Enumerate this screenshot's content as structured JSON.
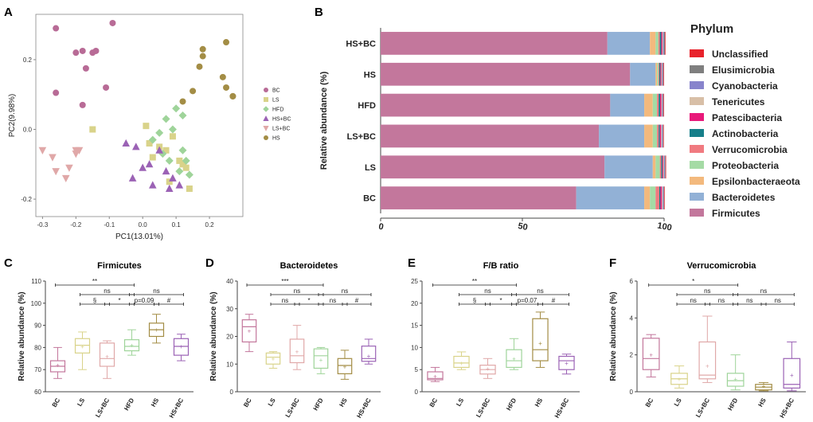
{
  "figure_labels": [
    "A",
    "B",
    "C",
    "D",
    "E",
    "F"
  ],
  "chart_data": [
    {
      "id": "A",
      "type": "scatter",
      "title": "",
      "xlabel": "PC1(13.01%)",
      "ylabel": "PC2(9.98%)",
      "xlim": [
        -0.32,
        0.3
      ],
      "ylim": [
        -0.25,
        0.33
      ],
      "xticks": [
        "-0.3",
        "-0.2",
        "-0.1",
        "0.0",
        "0.1",
        "0.2"
      ],
      "xtick_values": [
        -0.3,
        -0.2,
        -0.1,
        0.0,
        0.1,
        0.2
      ],
      "yticks": [
        "-0.2",
        "0.0",
        "0.2"
      ],
      "ytick_values": [
        -0.2,
        0.0,
        0.2
      ],
      "series": [
        {
          "name": "BC",
          "color": "#b86b96",
          "marker": "circle",
          "x": [
            -0.26,
            -0.26,
            -0.2,
            -0.18,
            -0.17,
            -0.15,
            -0.14,
            -0.09,
            -0.11,
            -0.18
          ],
          "y": [
            0.29,
            0.105,
            0.22,
            0.225,
            0.175,
            0.22,
            0.225,
            0.305,
            0.12,
            0.07
          ]
        },
        {
          "name": "LS",
          "color": "#d9d38a",
          "marker": "square",
          "x": [
            -0.15,
            0.01,
            0.02,
            0.05,
            0.07,
            0.09,
            0.11,
            0.12,
            0.13,
            0.14,
            0.08,
            0.03
          ],
          "y": [
            0.0,
            0.01,
            -0.04,
            -0.05,
            -0.06,
            -0.02,
            -0.09,
            -0.1,
            -0.11,
            -0.17,
            -0.15,
            -0.08
          ]
        },
        {
          "name": "HFD",
          "color": "#9fd49a",
          "marker": "diamond",
          "x": [
            0.03,
            0.05,
            0.06,
            0.08,
            0.09,
            0.1,
            0.12,
            0.12,
            0.13,
            0.11,
            0.14,
            0.07
          ],
          "y": [
            -0.03,
            -0.01,
            -0.07,
            -0.09,
            0.0,
            0.06,
            0.04,
            -0.06,
            -0.09,
            -0.12,
            -0.13,
            0.03
          ]
        },
        {
          "name": "HS+BC",
          "color": "#9b62b5",
          "marker": "triangle",
          "x": [
            -0.05,
            -0.02,
            -0.03,
            0.0,
            0.03,
            0.07,
            0.09,
            0.08,
            0.05,
            0.02,
            0.11
          ],
          "y": [
            -0.04,
            -0.05,
            -0.14,
            -0.11,
            -0.16,
            -0.12,
            -0.14,
            -0.17,
            -0.06,
            -0.1,
            -0.16
          ]
        },
        {
          "name": "LS+BC",
          "color": "#e0a8a8",
          "marker": "triangle-down",
          "x": [
            -0.3,
            -0.27,
            -0.26,
            -0.23,
            -0.22,
            -0.2,
            -0.19,
            -0.2
          ],
          "y": [
            -0.06,
            -0.08,
            -0.12,
            -0.14,
            -0.11,
            -0.07,
            -0.06,
            -0.06
          ]
        },
        {
          "name": "HS",
          "color": "#a38d45",
          "marker": "circle",
          "x": [
            0.12,
            0.15,
            0.17,
            0.18,
            0.25,
            0.25,
            0.24,
            0.27,
            0.27,
            0.18
          ],
          "y": [
            0.08,
            0.11,
            0.18,
            0.23,
            0.25,
            0.12,
            0.15,
            0.095,
            0.095,
            0.21
          ]
        }
      ],
      "legend": [
        "BC",
        "LS",
        "HFD",
        "HS+BC",
        "LS+BC",
        "HS"
      ]
    },
    {
      "id": "B",
      "type": "bar",
      "orientation": "horizontal-stacked",
      "ylabel": "Relative abundance (%)",
      "categories": [
        "HS+BC",
        "HS",
        "HFD",
        "LS+BC",
        "LS",
        "BC"
      ],
      "xlim": [
        0,
        100
      ],
      "xticks": [
        "0",
        "50",
        "100"
      ],
      "xtick_values": [
        0,
        50,
        100
      ],
      "legend_title": "Phylum",
      "series": [
        {
          "name": "Firmicutes",
          "color": "#c3779c",
          "values": [
            80,
            88,
            81,
            77,
            79,
            69
          ]
        },
        {
          "name": "Bacteroidetes",
          "color": "#92b1d6",
          "values": [
            15,
            9,
            12,
            16,
            17,
            24
          ]
        },
        {
          "name": "Epsilonbacteraeota",
          "color": "#f3b97d",
          "values": [
            2,
            0.5,
            3,
            3,
            1,
            2
          ]
        },
        {
          "name": "Proteobacteria",
          "color": "#a5dba5",
          "values": [
            1,
            0.5,
            1.5,
            1.5,
            1.5,
            2
          ]
        },
        {
          "name": "Verrucomicrobia",
          "color": "#f07a80",
          "values": [
            0.5,
            0.3,
            0.6,
            0.6,
            0.5,
            1.3
          ]
        },
        {
          "name": "Actinobacteria",
          "color": "#167f8a",
          "values": [
            0.5,
            0.4,
            0.5,
            0.4,
            0.4,
            0.4
          ]
        },
        {
          "name": "Patescibacteria",
          "color": "#e8197a",
          "values": [
            0.4,
            0.3,
            0.4,
            0.4,
            0.3,
            0.5
          ]
        },
        {
          "name": "Tenericutes",
          "color": "#d8bfa7",
          "values": [
            0.3,
            0.3,
            0.3,
            0.3,
            0.3,
            0.3
          ]
        },
        {
          "name": "Cyanobacteria",
          "color": "#8884cc",
          "values": [
            0.3,
            0.3,
            0.3,
            0.3,
            0.3,
            0.3
          ]
        },
        {
          "name": "Elusimicrobia",
          "color": "#7f7f7f",
          "values": [
            0.3,
            0.2,
            0.2,
            0.2,
            0.2,
            0.2
          ]
        },
        {
          "name": "Unclassified",
          "color": "#e8222b",
          "values": [
            0.2,
            0.2,
            0.2,
            0.2,
            0.2,
            0.2
          ]
        }
      ],
      "legend_order": [
        "Unclassified",
        "Elusimicrobia",
        "Cyanobacteria",
        "Tenericutes",
        "Patescibacteria",
        "Actinobacteria",
        "Verrucomicrobia",
        "Proteobacteria",
        "Epsilonbacteraeota",
        "Bacteroidetes",
        "Firmicutes"
      ]
    },
    {
      "id": "C",
      "type": "box",
      "title": "Firmicutes",
      "ylabel": "Relative abundance (%)",
      "categories": [
        "BC",
        "LS",
        "LS+BC",
        "HFD",
        "HS",
        "HS+BC"
      ],
      "ylim": [
        60,
        110
      ],
      "yticks": [
        "60",
        "70",
        "80",
        "90",
        "100",
        "110"
      ],
      "ytick_values": [
        60,
        70,
        80,
        90,
        100,
        110
      ],
      "boxes": [
        {
          "min": 66,
          "q1": 69,
          "median": 71.5,
          "q3": 74,
          "max": 80,
          "mean": 72
        },
        {
          "min": 70,
          "q1": 77.5,
          "median": 81,
          "q3": 84,
          "max": 87,
          "mean": 80.5
        },
        {
          "min": 66,
          "q1": 71.5,
          "median": 75,
          "q3": 82,
          "max": 83,
          "mean": 76
        },
        {
          "min": 76.5,
          "q1": 78.5,
          "median": 80.5,
          "q3": 83.5,
          "max": 88,
          "mean": 81
        },
        {
          "min": 82,
          "q1": 85,
          "median": 88,
          "q3": 91,
          "max": 95,
          "mean": 88
        },
        {
          "min": 74,
          "q1": 76.5,
          "median": 80.5,
          "q3": 84,
          "max": 86,
          "mean": 80.5
        }
      ],
      "colors": [
        "#c3779c",
        "#d9d38a",
        "#e0a8a8",
        "#9fd49a",
        "#a38d45",
        "#9b62b5"
      ],
      "brackets": [
        {
          "from": 0,
          "to": 3,
          "level": 0,
          "label": "**"
        },
        {
          "from": 1,
          "to": 3,
          "level": 1,
          "label": "ns"
        },
        {
          "from": 3,
          "to": 5,
          "level": 1,
          "label": "ns"
        },
        {
          "from": 1,
          "to": 2,
          "level": 2,
          "label": "§"
        },
        {
          "from": 2,
          "to": 3,
          "level": 2,
          "label": "*"
        },
        {
          "from": 3,
          "to": 4,
          "level": 2,
          "label": "p=0.09"
        },
        {
          "from": 4,
          "to": 5,
          "level": 2,
          "label": "#"
        }
      ]
    },
    {
      "id": "D",
      "type": "box",
      "title": "Bacteroidetes",
      "ylabel": "Relative abundance (%)",
      "categories": [
        "BC",
        "LS",
        "LS+BC",
        "HFD",
        "HS",
        "HS+BC"
      ],
      "ylim": [
        0,
        40
      ],
      "yticks": [
        "0",
        "10",
        "20",
        "30",
        "40"
      ],
      "ytick_values": [
        0,
        10,
        20,
        30,
        40
      ],
      "boxes": [
        {
          "min": 14.5,
          "q1": 18,
          "median": 23.5,
          "q3": 26,
          "max": 28,
          "mean": 22
        },
        {
          "min": 8.5,
          "q1": 10,
          "median": 12.5,
          "q3": 14,
          "max": 14.5,
          "mean": 12
        },
        {
          "min": 8,
          "q1": 10.5,
          "median": 13,
          "q3": 19,
          "max": 24,
          "mean": 14.5
        },
        {
          "min": 6.5,
          "q1": 8.5,
          "median": 13,
          "q3": 15.5,
          "max": 16,
          "mean": 11.5
        },
        {
          "min": 4.5,
          "q1": 6.5,
          "median": 9.5,
          "q3": 12,
          "max": 15,
          "mean": 9
        },
        {
          "min": 10,
          "q1": 11,
          "median": 12,
          "q3": 16.5,
          "max": 19,
          "mean": 13
        }
      ],
      "colors": [
        "#c3779c",
        "#d9d38a",
        "#e0a8a8",
        "#9fd49a",
        "#a38d45",
        "#9b62b5"
      ],
      "brackets": [
        {
          "from": 0,
          "to": 3,
          "level": 0,
          "label": "***"
        },
        {
          "from": 1,
          "to": 3,
          "level": 1,
          "label": "ns"
        },
        {
          "from": 3,
          "to": 5,
          "level": 1,
          "label": "ns"
        },
        {
          "from": 1,
          "to": 2,
          "level": 2,
          "label": "ns"
        },
        {
          "from": 2,
          "to": 3,
          "level": 2,
          "label": "*"
        },
        {
          "from": 3,
          "to": 4,
          "level": 2,
          "label": "ns"
        },
        {
          "from": 4,
          "to": 5,
          "level": 2,
          "label": "#"
        }
      ]
    },
    {
      "id": "E",
      "type": "box",
      "title": "F/B ratio",
      "ylabel": "",
      "categories": [
        "BC",
        "LS",
        "LS+BC",
        "HFD",
        "HS",
        "HS+BC"
      ],
      "ylim": [
        0,
        25
      ],
      "yticks": [
        "0",
        "5",
        "10",
        "15",
        "20",
        "25"
      ],
      "ytick_values": [
        0,
        5,
        10,
        15,
        20,
        25
      ],
      "boxes": [
        {
          "min": 2.3,
          "q1": 2.7,
          "median": 3,
          "q3": 4.5,
          "max": 5.5,
          "mean": 3.5
        },
        {
          "min": 5,
          "q1": 5.5,
          "median": 6.5,
          "q3": 8,
          "max": 9,
          "mean": 6.5
        },
        {
          "min": 3,
          "q1": 4,
          "median": 5,
          "q3": 6,
          "max": 7.5,
          "mean": 5.2
        },
        {
          "min": 5,
          "q1": 5.5,
          "median": 7,
          "q3": 9.5,
          "max": 12,
          "mean": 7.5
        },
        {
          "min": 5.5,
          "q1": 7,
          "median": 9.5,
          "q3": 16.5,
          "max": 18,
          "mean": 11
        },
        {
          "min": 4,
          "q1": 5,
          "median": 7,
          "q3": 8,
          "max": 8.5,
          "mean": 6.5
        }
      ],
      "colors": [
        "#c3779c",
        "#d9d38a",
        "#e0a8a8",
        "#9fd49a",
        "#a38d45",
        "#9b62b5"
      ],
      "brackets": [
        {
          "from": 0,
          "to": 3,
          "level": 0,
          "label": "**"
        },
        {
          "from": 1,
          "to": 3,
          "level": 1,
          "label": "ns"
        },
        {
          "from": 3,
          "to": 5,
          "level": 1,
          "label": "ns"
        },
        {
          "from": 1,
          "to": 2,
          "level": 2,
          "label": "§"
        },
        {
          "from": 2,
          "to": 3,
          "level": 2,
          "label": "*"
        },
        {
          "from": 3,
          "to": 4,
          "level": 2,
          "label": "p=0.07"
        },
        {
          "from": 4,
          "to": 5,
          "level": 2,
          "label": "#"
        }
      ]
    },
    {
      "id": "F",
      "type": "box",
      "title": "Verrucomicrobia",
      "ylabel": "Relative abundance (%)",
      "categories": [
        "BC",
        "LS",
        "LS+BC",
        "HFD",
        "HS",
        "HS+BC"
      ],
      "ylim": [
        0,
        6
      ],
      "yticks": [
        "0",
        "2",
        "4",
        "6"
      ],
      "ytick_values": [
        0,
        2,
        4,
        6
      ],
      "boxes": [
        {
          "min": 0.8,
          "q1": 1.2,
          "median": 1.8,
          "q3": 2.9,
          "max": 3.1,
          "mean": 2.0
        },
        {
          "min": 0.2,
          "q1": 0.4,
          "median": 0.7,
          "q3": 1.0,
          "max": 1.4,
          "mean": 0.7
        },
        {
          "min": 0.5,
          "q1": 0.7,
          "median": 0.9,
          "q3": 2.7,
          "max": 4.1,
          "mean": 1.4
        },
        {
          "min": 0.1,
          "q1": 0.3,
          "median": 0.6,
          "q3": 1.0,
          "max": 2.0,
          "mean": 0.7
        },
        {
          "min": 0.05,
          "q1": 0.1,
          "median": 0.25,
          "q3": 0.4,
          "max": 0.5,
          "mean": 0.3
        },
        {
          "min": 0.05,
          "q1": 0.2,
          "median": 0.4,
          "q3": 1.8,
          "max": 2.7,
          "mean": 0.9
        }
      ],
      "colors": [
        "#c3779c",
        "#d9d38a",
        "#e0a8a8",
        "#9fd49a",
        "#a38d45",
        "#9b62b5"
      ],
      "brackets": [
        {
          "from": 0,
          "to": 3,
          "level": 0,
          "label": "*"
        },
        {
          "from": 1,
          "to": 3,
          "level": 1,
          "label": "ns"
        },
        {
          "from": 3,
          "to": 5,
          "level": 1,
          "label": "ns"
        },
        {
          "from": 1,
          "to": 2,
          "level": 2,
          "label": "ns"
        },
        {
          "from": 2,
          "to": 3,
          "level": 2,
          "label": "ns"
        },
        {
          "from": 3,
          "to": 4,
          "level": 2,
          "label": "ns"
        },
        {
          "from": 4,
          "to": 5,
          "level": 2,
          "label": "ns"
        }
      ]
    }
  ]
}
